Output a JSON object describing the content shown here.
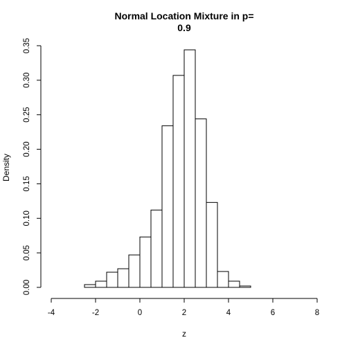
{
  "chart_data": {
    "type": "bar",
    "title_lines": [
      "Normal Location Mixture in p=",
      "0.9"
    ],
    "xlabel": "z",
    "ylabel": "Density",
    "xlim": [
      -4,
      8
    ],
    "ylim": [
      0,
      0.35
    ],
    "x_ticks": [
      -4,
      -2,
      0,
      2,
      4,
      6,
      8
    ],
    "x_tick_labels": [
      "-4",
      "-2",
      "0",
      "2",
      "4",
      "6",
      "8"
    ],
    "y_ticks": [
      0,
      0.05,
      0.1,
      0.15,
      0.2,
      0.25,
      0.3,
      0.35
    ],
    "y_tick_labels": [
      "0.00",
      "0.05",
      "0.10",
      "0.15",
      "0.20",
      "0.25",
      "0.30",
      "0.35"
    ],
    "bin_edges": [
      -3,
      -2.5,
      -2,
      -1.5,
      -1,
      -0.5,
      0,
      0.5,
      1,
      1.5,
      2,
      2.5,
      3,
      3.5,
      4,
      4.5,
      5,
      5.5,
      6,
      6.5,
      7,
      7.5,
      8
    ],
    "values": [
      0,
      0.004,
      0.009,
      0.022,
      0.027,
      0.047,
      0.073,
      0.112,
      0.234,
      0.307,
      0.344,
      0.244,
      0.123,
      0.023,
      0.009,
      0.002,
      0,
      0,
      0,
      0,
      0,
      0
    ],
    "bar_fill": "#ffffff",
    "bar_stroke": "#000000",
    "grid": false,
    "legend": "none"
  }
}
